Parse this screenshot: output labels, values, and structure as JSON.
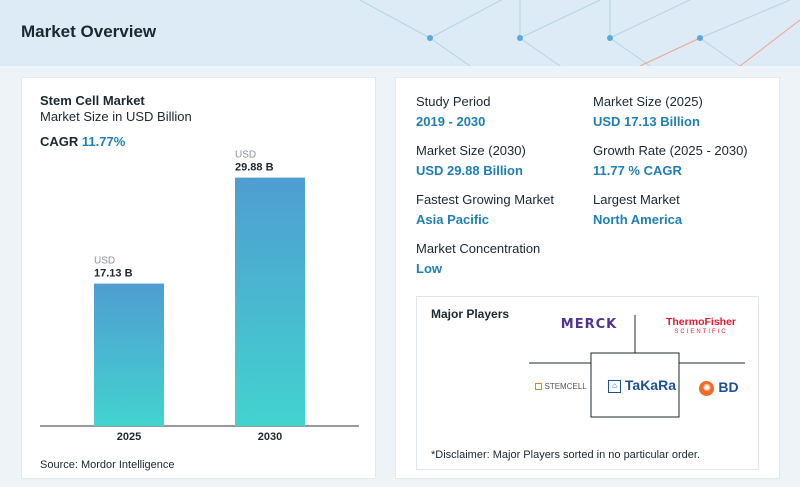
{
  "header": {
    "title": "Market Overview"
  },
  "left": {
    "title": "Stem Cell Market",
    "subtitle": "Market Size in USD Billion",
    "cagr_label": "CAGR",
    "cagr_value": "11.77%",
    "source": "Source: Mordor Intelligence"
  },
  "chart_data": {
    "type": "bar",
    "categories": [
      "2025",
      "2030"
    ],
    "values": [
      17.13,
      29.88
    ],
    "unit_prefix": "USD",
    "value_labels": [
      "17.13 B",
      "29.88 B"
    ],
    "ylim": [
      0,
      32
    ],
    "grid": false,
    "colors": {
      "top": "#4f9dd0",
      "bottom": "#43d3cf"
    }
  },
  "stats": {
    "study_period": {
      "label": "Study Period",
      "value": "2019 - 2030"
    },
    "market_size_2025": {
      "label": "Market Size (2025)",
      "value": "USD 17.13 Billion"
    },
    "market_size_2030": {
      "label": "Market Size (2030)",
      "value": "USD 29.88 Billion"
    },
    "growth_rate": {
      "label": "Growth Rate (2025 - 2030)",
      "value": "11.77 % CAGR"
    },
    "fastest_growing": {
      "label": "Fastest Growing Market",
      "value": "Asia Pacific"
    },
    "largest_market": {
      "label": "Largest Market",
      "value": "North America"
    },
    "concentration": {
      "label": "Market Concentration",
      "value": "Low"
    }
  },
  "players": {
    "title": "Major Players",
    "logos": {
      "merck": "MERCK",
      "thermo_line1": "ThermoFisher",
      "thermo_line2": "SCIENTIFIC",
      "stemcell": "STEMCELL",
      "takara": "TaKaRa",
      "bd": "BD"
    },
    "disclaimer": "*Disclaimer: Major Players sorted in no particular order."
  },
  "colors": {
    "accent": "#1f7fb4",
    "header_bg": "#dcebf5"
  }
}
